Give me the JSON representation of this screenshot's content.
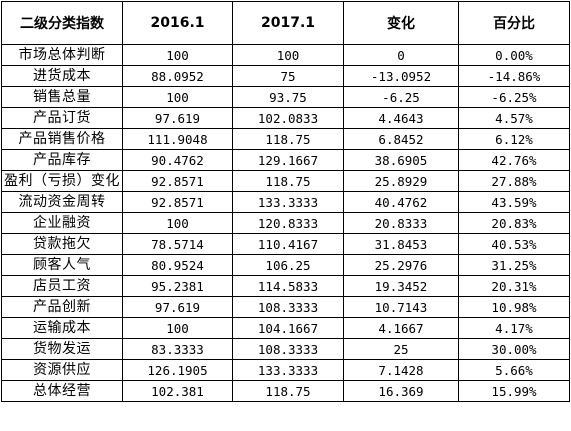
{
  "table": {
    "headers": [
      "二级分类指数",
      "2016.1",
      "2017.1",
      "变化",
      "百分比"
    ],
    "rows": [
      [
        "市场总体判断",
        "100",
        "100",
        "0",
        "0.00%"
      ],
      [
        "进货成本",
        "88.0952",
        "75",
        "-13.0952",
        "-14.86%"
      ],
      [
        "销售总量",
        "100",
        "93.75",
        "-6.25",
        "-6.25%"
      ],
      [
        "产品订货",
        "97.619",
        "102.0833",
        "4.4643",
        "4.57%"
      ],
      [
        "产品销售价格",
        "111.9048",
        "118.75",
        "6.8452",
        "6.12%"
      ],
      [
        "产品库存",
        "90.4762",
        "129.1667",
        "38.6905",
        "42.76%"
      ],
      [
        "盈利（亏损）变化",
        "92.8571",
        "118.75",
        "25.8929",
        "27.88%"
      ],
      [
        "流动资金周转",
        "92.8571",
        "133.3333",
        "40.4762",
        "43.59%"
      ],
      [
        "企业融资",
        "100",
        "120.8333",
        "20.8333",
        "20.83%"
      ],
      [
        "贷款拖欠",
        "78.5714",
        "110.4167",
        "31.8453",
        "40.53%"
      ],
      [
        "顾客人气",
        "80.9524",
        "106.25",
        "25.2976",
        "31.25%"
      ],
      [
        "店员工资",
        "95.2381",
        "114.5833",
        "19.3452",
        "20.31%"
      ],
      [
        "产品创新",
        "97.619",
        "108.3333",
        "10.7143",
        "10.98%"
      ],
      [
        "运输成本",
        "100",
        "104.1667",
        "4.1667",
        "4.17%"
      ],
      [
        "货物发运",
        "83.3333",
        "108.3333",
        "25",
        "30.00%"
      ],
      [
        "资源供应",
        "126.1905",
        "133.3333",
        "7.1428",
        "5.66%"
      ],
      [
        "总体经营",
        "102.381",
        "118.75",
        "16.369",
        "15.99%"
      ]
    ]
  }
}
